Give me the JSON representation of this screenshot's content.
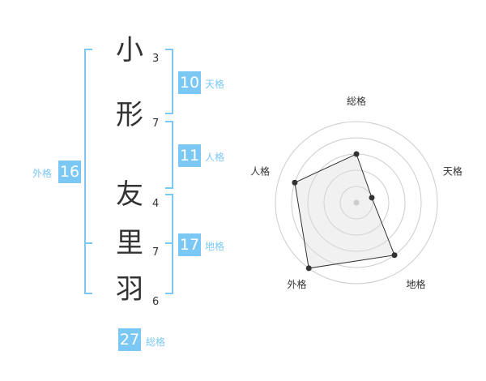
{
  "name": {
    "chars": [
      {
        "char": "小",
        "strokes": "3"
      },
      {
        "char": "形",
        "strokes": "7"
      },
      {
        "char": "友",
        "strokes": "4"
      },
      {
        "char": "里",
        "strokes": "7"
      },
      {
        "char": "羽",
        "strokes": "6"
      }
    ]
  },
  "scores": {
    "tenkaku": {
      "label": "天格",
      "value": "10"
    },
    "jinkaku": {
      "label": "人格",
      "value": "11"
    },
    "chikaku": {
      "label": "地格",
      "value": "17"
    },
    "gaikaku": {
      "label": "外格",
      "value": "16"
    },
    "soukaku": {
      "label": "総格",
      "value": "27"
    }
  },
  "colors": {
    "accent": "#7cc8f5",
    "text": "#333333"
  },
  "chart_data": {
    "type": "radar",
    "axes": [
      "総格",
      "天格",
      "地格",
      "外格",
      "人格"
    ],
    "values": [
      3,
      1,
      4,
      5,
      4
    ],
    "range": [
      0,
      5
    ],
    "rings": 5
  }
}
